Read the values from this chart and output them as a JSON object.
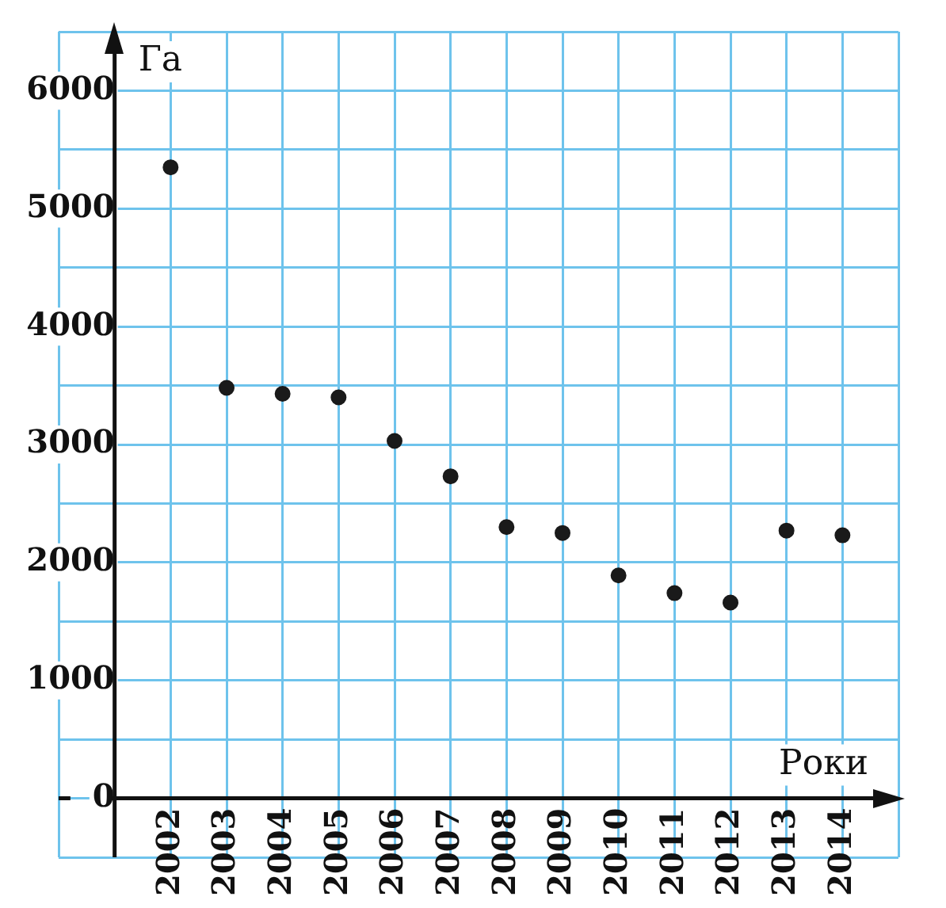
{
  "chart_data": {
    "type": "scatter",
    "xlabel": "Роки",
    "ylabel": "Га",
    "x": [
      2002,
      2003,
      2004,
      2005,
      2006,
      2007,
      2008,
      2009,
      2010,
      2011,
      2012,
      2013,
      2014
    ],
    "series": [
      {
        "color": "#1a1a1a",
        "values": [
          5350,
          3480,
          3430,
          3400,
          3030,
          2730,
          2300,
          2250,
          1890,
          1740,
          1660,
          2270,
          2230
        ]
      }
    ],
    "marker": "circle",
    "grid": true,
    "legend": false,
    "xlim": [
      2000,
      2015
    ],
    "xticks": [
      {
        "value": 2000,
        "label": null
      },
      {
        "value": 2001,
        "label": null
      },
      2002,
      2003,
      2004,
      2005,
      2006,
      2007,
      2008,
      2009,
      2010,
      2011,
      2012,
      2013,
      2014,
      {
        "value": 2015,
        "label": null
      }
    ],
    "ylim": [
      -500,
      6500
    ],
    "yticks": [
      {
        "value": -500,
        "label": null
      },
      0,
      {
        "value": 500,
        "label": null
      },
      1000,
      {
        "value": 1500,
        "label": null
      },
      2000,
      {
        "value": 2500,
        "label": null
      },
      3000,
      {
        "value": 3500,
        "label": null
      },
      4000,
      {
        "value": 4500,
        "label": null
      },
      5000,
      {
        "value": 5500,
        "label": null
      },
      6000,
      {
        "value": 6500,
        "label": null
      }
    ]
  }
}
